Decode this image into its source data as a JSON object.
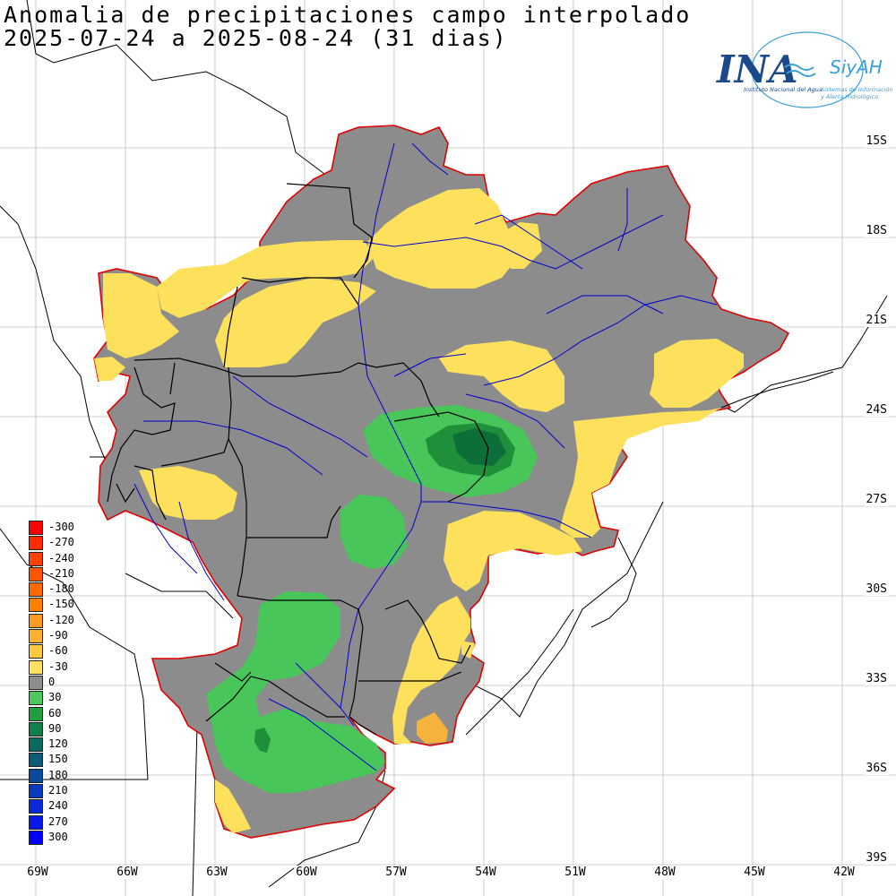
{
  "title": {
    "line1": "Anomalia de precipitaciones campo interpolado",
    "line2": "2025-07-24 a 2025-08-24 (31 dias)"
  },
  "logo": {
    "mark": "INA",
    "brand": "SiyAH",
    "subtitle1": "Instituto Nacional del Agua",
    "subtitle2": "Sistemas de Información",
    "subtitle3": "y Alerta Hidrológico",
    "colors": {
      "ina": "#1a4a8a",
      "accent": "#3aa0d8"
    }
  },
  "lat_labels": [
    "15S",
    "18S",
    "21S",
    "24S",
    "27S",
    "30S",
    "33S",
    "36S",
    "39S"
  ],
  "lon_labels": [
    "69W",
    "66W",
    "63W",
    "60W",
    "57W",
    "54W",
    "51W",
    "48W",
    "45W",
    "42W"
  ],
  "legend": [
    {
      "label": "-300",
      "color": "#ff0000"
    },
    {
      "label": "-270",
      "color": "#ff2a00"
    },
    {
      "label": "-240",
      "color": "#ff4000"
    },
    {
      "label": "-210",
      "color": "#ff5500"
    },
    {
      "label": "-180",
      "color": "#ff6a00"
    },
    {
      "label": "-150",
      "color": "#ff8000"
    },
    {
      "label": "-120",
      "color": "#ff9a20"
    },
    {
      "label": "-90",
      "color": "#ffb030"
    },
    {
      "label": "-60",
      "color": "#ffc840"
    },
    {
      "label": "-30",
      "color": "#ffe060"
    },
    {
      "label": "0",
      "color": "#8c8c8c"
    },
    {
      "label": "30",
      "color": "#4cc85a"
    },
    {
      "label": "60",
      "color": "#20a03c"
    },
    {
      "label": "90",
      "color": "#10804a"
    },
    {
      "label": "120",
      "color": "#0a6a60"
    },
    {
      "label": "150",
      "color": "#0a5a78"
    },
    {
      "label": "180",
      "color": "#0a4a9a"
    },
    {
      "label": "210",
      "color": "#0a3abf"
    },
    {
      "label": "240",
      "color": "#0a28d8"
    },
    {
      "label": "270",
      "color": "#0a18e8"
    },
    {
      "label": "300",
      "color": "#0000ff"
    }
  ],
  "colors": {
    "anomaly_zero": "#8c8c8c",
    "anomaly_dry": "#fde15c",
    "anomaly_dry_strong": "#f5b33c",
    "anomaly_wet": "#48c65a",
    "anomaly_wet_strong": "#1f8f3a",
    "anomaly_wet_max": "#0e6e3a",
    "domain_border": "#e00000",
    "rivers": "#0000cc",
    "boundaries": "#000000"
  }
}
